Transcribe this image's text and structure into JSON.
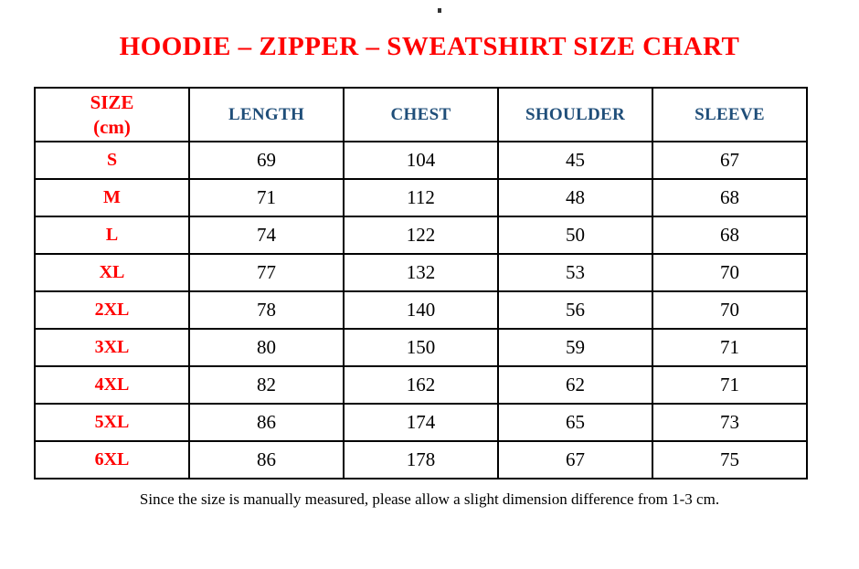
{
  "page": {
    "title": "HOODIE – ZIPPER – SWEATSHIRT SIZE CHART",
    "footnote": "Since the size is manually measured, please allow a slight dimension difference from 1-3 cm."
  },
  "colors": {
    "title_red": "#ff0000",
    "size_label_red": "#ff0000",
    "header_blue": "#1F4E79",
    "value_black": "#000000",
    "border_black": "#000000"
  },
  "table": {
    "header": {
      "size_line1": "SIZE",
      "size_line2": "(cm)",
      "columns": [
        "LENGTH",
        "CHEST",
        "SHOULDER",
        "SLEEVE"
      ]
    },
    "rows": [
      {
        "size": "S",
        "length": "69",
        "chest": "104",
        "shoulder": "45",
        "sleeve": "67"
      },
      {
        "size": "M",
        "length": "71",
        "chest": "112",
        "shoulder": "48",
        "sleeve": "68"
      },
      {
        "size": "L",
        "length": "74",
        "chest": "122",
        "shoulder": "50",
        "sleeve": "68"
      },
      {
        "size": "XL",
        "length": "77",
        "chest": "132",
        "shoulder": "53",
        "sleeve": "70"
      },
      {
        "size": "2XL",
        "length": "78",
        "chest": "140",
        "shoulder": "56",
        "sleeve": "70"
      },
      {
        "size": "3XL",
        "length": "80",
        "chest": "150",
        "shoulder": "59",
        "sleeve": "71"
      },
      {
        "size": "4XL",
        "length": "82",
        "chest": "162",
        "shoulder": "62",
        "sleeve": "71"
      },
      {
        "size": "5XL",
        "length": "86",
        "chest": "174",
        "shoulder": "65",
        "sleeve": "73"
      },
      {
        "size": "6XL",
        "length": "86",
        "chest": "178",
        "shoulder": "67",
        "sleeve": "75"
      }
    ]
  }
}
